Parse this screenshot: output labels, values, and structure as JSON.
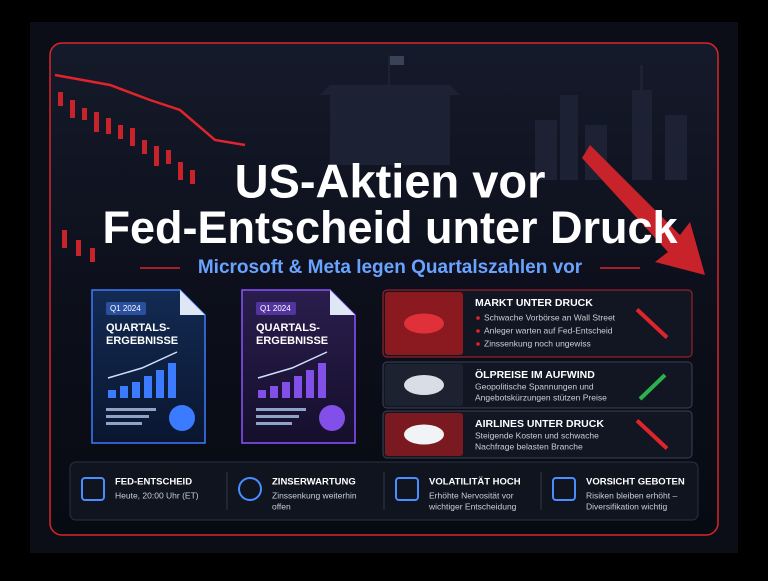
{
  "header": {
    "title_lines": [
      "US-Aktien vor",
      "Fed-Entscheid unter Druck"
    ],
    "subtitle": "Microsoft & Meta legen Quartalszahlen vor"
  },
  "documents": [
    {
      "tag": "Q1 2024",
      "lines": [
        "QUARTALS-",
        "ERGEBNISSE"
      ]
    },
    {
      "tag": "Q1 2024",
      "lines": [
        "QUARTALS-",
        "ERGEBNISSE"
      ]
    }
  ],
  "panels": [
    {
      "title": "MARKT UNTER DRUCK",
      "bullets": [
        "Schwache Vorbörse an Wall Street",
        "Anleger warten  auf Fed-Entscheid",
        "Zinssenkung noch ungewiss"
      ]
    },
    {
      "title": "ÖLPREISE IM AUFWIND",
      "lines": [
        "Geopolitische Spannungen und",
        "Angebotskürzungen stützen Preise"
      ]
    },
    {
      "title": "AIRLINES UNTER DRUCK",
      "lines": [
        "Steigende Kosten und schwache",
        "Nachfrage belasten Branche"
      ]
    }
  ],
  "footer": [
    {
      "title": "FED-ENTSCHEID",
      "lines": [
        "Heute, 20:00 Uhr (ET)"
      ]
    },
    {
      "title": "ZINSERWARTUNG",
      "lines": [
        "Zinssenkung weiterhin",
        "offen"
      ]
    },
    {
      "title": "VOLATILITÄT HOCH",
      "lines": [
        "Erhöhte Nervosität vor",
        "wichtiger Entscheidung"
      ]
    },
    {
      "title": "VORSICHT GEBOTEN",
      "lines": [
        "Risiken bleiben erhöht –",
        "Diversifikation wichtig"
      ]
    }
  ]
}
